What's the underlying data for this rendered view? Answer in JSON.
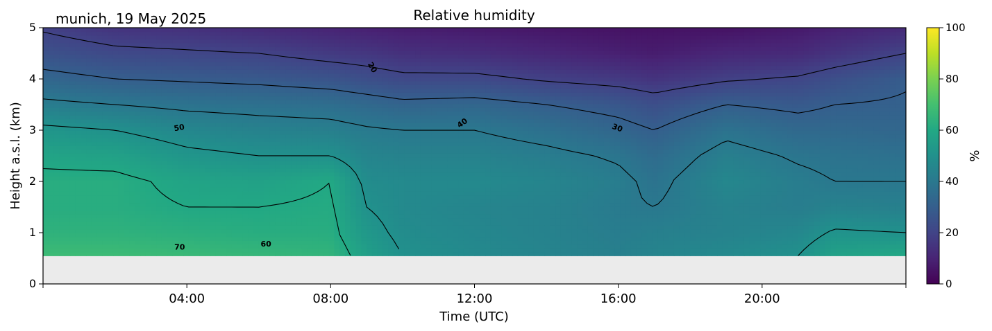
{
  "chart_data": {
    "type": "heatmap",
    "title": "Relative humidity",
    "subtitle": "munich, 19 May 2025",
    "xlabel": "Time (UTC)",
    "ylabel": "Height a.s.l. (km)",
    "xlim_hours": [
      0,
      24
    ],
    "ylim_km": [
      0,
      5
    ],
    "x_ticks": [
      "04:00",
      "08:00",
      "12:00",
      "16:00",
      "20:00"
    ],
    "x_tick_hours": [
      4,
      8,
      12,
      16,
      20
    ],
    "y_ticks": [
      "0",
      "1",
      "2",
      "3",
      "4",
      "5"
    ],
    "y_tick_values": [
      0,
      1,
      2,
      3,
      4,
      5
    ],
    "data_bottom_km": 0.55,
    "colorbar": {
      "label": "%",
      "range": [
        0,
        100
      ],
      "ticks": [
        "0",
        "20",
        "40",
        "60",
        "80",
        "100"
      ],
      "tick_values": [
        0,
        20,
        40,
        60,
        80,
        100
      ],
      "colormap": "viridis"
    },
    "contour_levels": [
      20,
      30,
      40,
      50,
      60,
      70
    ],
    "contour_labels": [
      {
        "text": "20",
        "x": 9.1,
        "y": 4.2,
        "rotate": 60
      },
      {
        "text": "40",
        "x": 11.7,
        "y": 3.1,
        "rotate": -35
      },
      {
        "text": "30",
        "x": 15.95,
        "y": 3.0,
        "rotate": 20
      },
      {
        "text": "50",
        "x": 3.8,
        "y": 3.0,
        "rotate": -10
      },
      {
        "text": "60",
        "x": 6.2,
        "y": 0.73,
        "rotate": 0
      },
      {
        "text": "70",
        "x": 3.8,
        "y": 0.67,
        "rotate": 0
      }
    ],
    "rh_profiles": {
      "times_hours": [
        0,
        2,
        4,
        6,
        8,
        9,
        10,
        12,
        14,
        16,
        17,
        19,
        21,
        22,
        24
      ],
      "heights_km": [
        0.55,
        1,
        1.5,
        2,
        2.5,
        3,
        3.5,
        4,
        4.5,
        5
      ],
      "values": [
        [
          68,
          64,
          62,
          62,
          58,
          52,
          42,
          33,
          25,
          19
        ],
        [
          68,
          64,
          62,
          62,
          57,
          50,
          40,
          30,
          22,
          15
        ],
        [
          67,
          63,
          60,
          58,
          52,
          46,
          38,
          29,
          21,
          14
        ],
        [
          66,
          62,
          60,
          57,
          50,
          44,
          37,
          28,
          20,
          12
        ],
        [
          65,
          62,
          61,
          60,
          50,
          43,
          36,
          26,
          17,
          10
        ],
        [
          56,
          53,
          50,
          48,
          45,
          41,
          34,
          24,
          16,
          9
        ],
        [
          50,
          48,
          47,
          47,
          44,
          40,
          32,
          22,
          14,
          8
        ],
        [
          47,
          46,
          45,
          47,
          44,
          40,
          33,
          22,
          13,
          7
        ],
        [
          45,
          44,
          44,
          45,
          42,
          37,
          30,
          19,
          11,
          6
        ],
        [
          43,
          42,
          41,
          42,
          39,
          33,
          27,
          17,
          9,
          5
        ],
        [
          45,
          43,
          40,
          38,
          35,
          30,
          24,
          15,
          8,
          5
        ],
        [
          47,
          44,
          44,
          46,
          43,
          38,
          30,
          19,
          11,
          5
        ],
        [
          50,
          46,
          42,
          42,
          39,
          34,
          28,
          21,
          12,
          7
        ],
        [
          57,
          51,
          44,
          40,
          38,
          34,
          30,
          24,
          15,
          9
        ],
        [
          60,
          50,
          43,
          40,
          37,
          33,
          31,
          29,
          20,
          12
        ]
      ]
    }
  }
}
